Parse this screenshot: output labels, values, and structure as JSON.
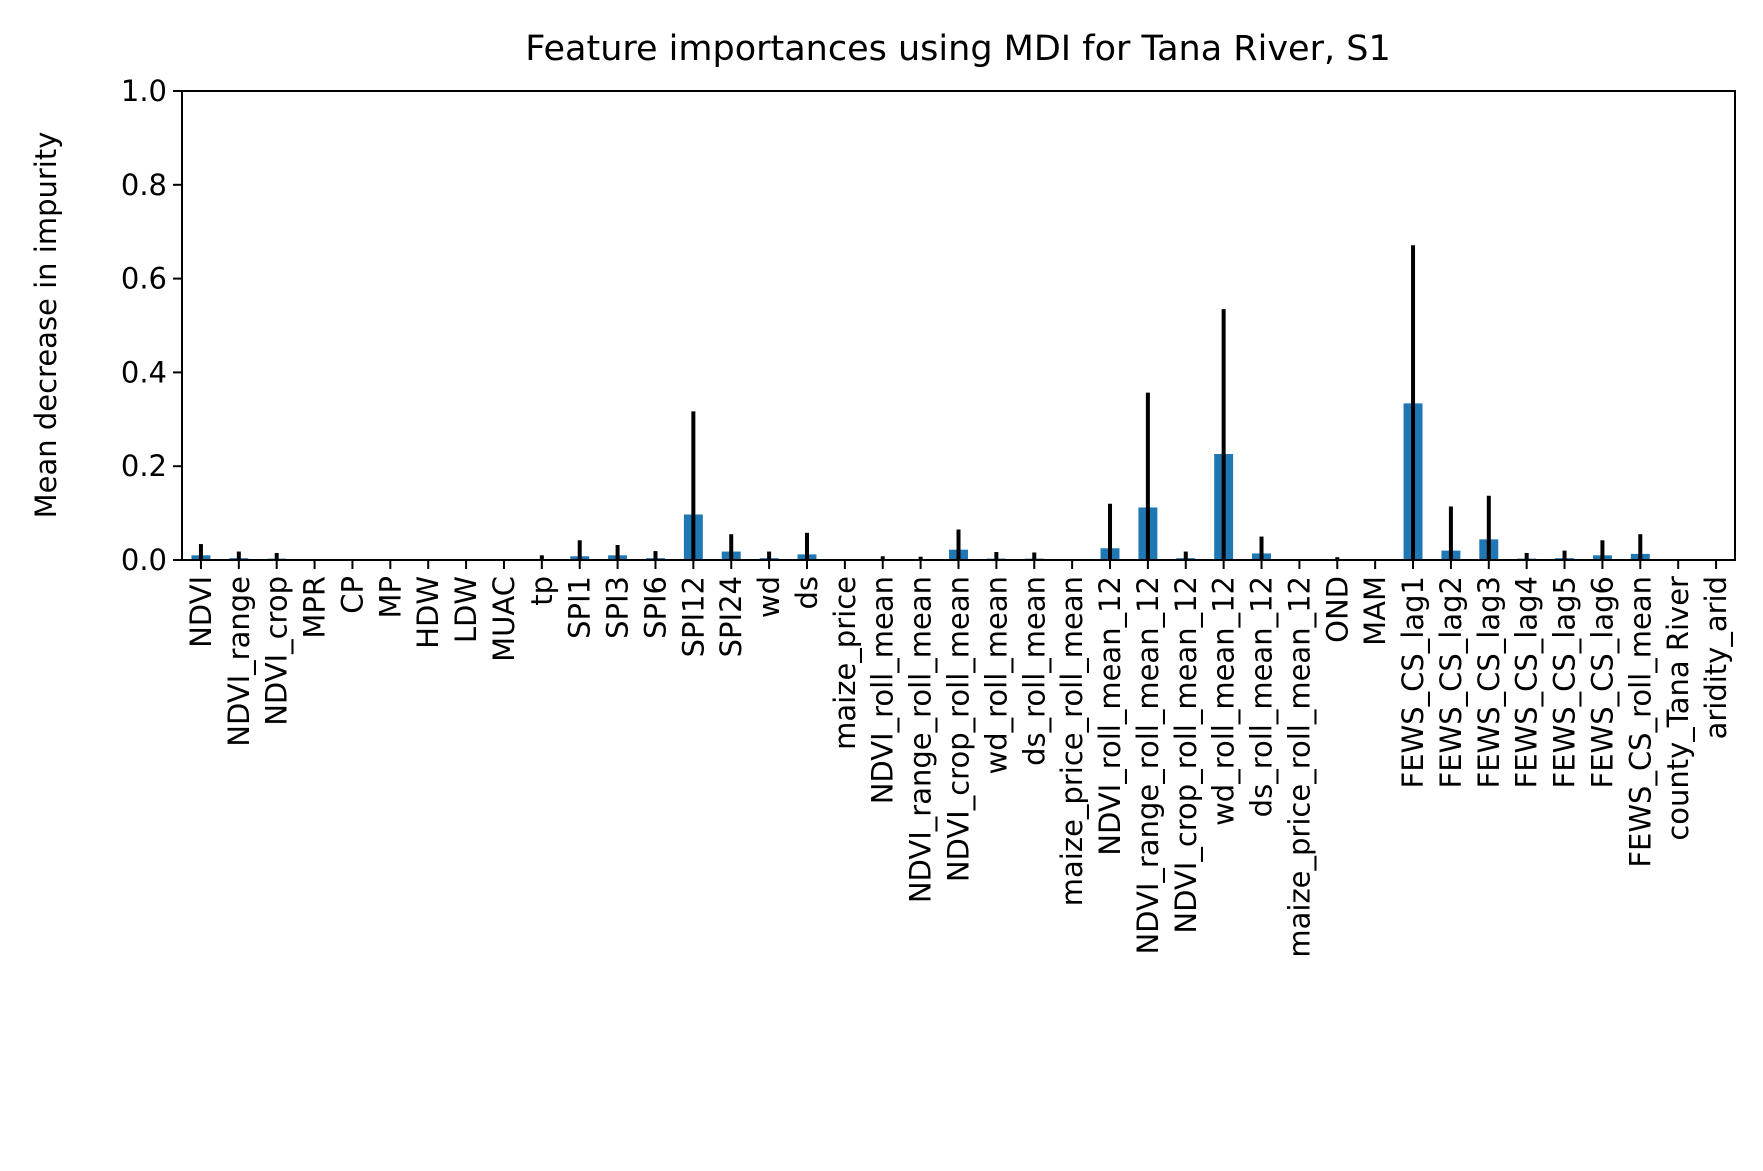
{
  "colors": {
    "bar": "#1f77b4",
    "error_bar": "#000000",
    "axes": "#000000",
    "background": "#ffffff"
  },
  "chart_data": {
    "type": "bar",
    "title": "Feature importances using MDI for Tana River, S1",
    "xlabel": "",
    "ylabel": "Mean decrease in impurity",
    "ylim": [
      0.0,
      1.0
    ],
    "yticks": [
      "0.0",
      "0.2",
      "0.4",
      "0.6",
      "0.8",
      "1.0"
    ],
    "grid": false,
    "legend": false,
    "categories": [
      "NDVI",
      "NDVI_range",
      "NDVI_crop",
      "MPR",
      "CP",
      "MP",
      "HDW",
      "LDW",
      "MUAC",
      "tp",
      "SPI1",
      "SPI3",
      "SPI6",
      "SPI12",
      "SPI24",
      "wd",
      "ds",
      "maize_price",
      "NDVI_roll_mean",
      "NDVI_range_roll_mean",
      "NDVI_crop_roll_mean",
      "wd_roll_mean",
      "ds_roll_mean",
      "maize_price_roll_mean",
      "NDVI_roll_mean_12",
      "NDVI_range_roll_mean_12",
      "NDVI_crop_roll_mean_12",
      "wd_roll_mean_12",
      "ds_roll_mean_12",
      "maize_price_roll_mean_12",
      "OND",
      "MAM",
      "FEWS_CS_lag1",
      "FEWS_CS_lag2",
      "FEWS_CS_lag3",
      "FEWS_CS_lag4",
      "FEWS_CS_lag5",
      "FEWS_CS_lag6",
      "FEWS_CS_roll_mean",
      "county_Tana River",
      "aridity_arid"
    ],
    "values": [
      0.01,
      0.004,
      0.003,
      0.0,
      0.0,
      0.0,
      0.0,
      0.0,
      0.0,
      0.002,
      0.008,
      0.01,
      0.004,
      0.097,
      0.018,
      0.004,
      0.012,
      0.0,
      0.002,
      0.001,
      0.022,
      0.003,
      0.003,
      0.0,
      0.025,
      0.112,
      0.004,
      0.226,
      0.014,
      0.0,
      0.001,
      0.0,
      0.334,
      0.02,
      0.044,
      0.003,
      0.004,
      0.01,
      0.013,
      0.0,
      0.0
    ],
    "error_top": [
      0.034,
      0.018,
      0.015,
      0.0,
      0.0,
      0.0,
      0.0,
      0.0,
      0.0,
      0.01,
      0.042,
      0.032,
      0.019,
      0.317,
      0.055,
      0.018,
      0.058,
      0.0,
      0.008,
      0.007,
      0.065,
      0.017,
      0.016,
      0.0,
      0.12,
      0.357,
      0.018,
      0.535,
      0.05,
      0.0,
      0.006,
      0.0,
      0.671,
      0.114,
      0.137,
      0.015,
      0.02,
      0.042,
      0.055,
      0.0,
      0.0
    ]
  }
}
